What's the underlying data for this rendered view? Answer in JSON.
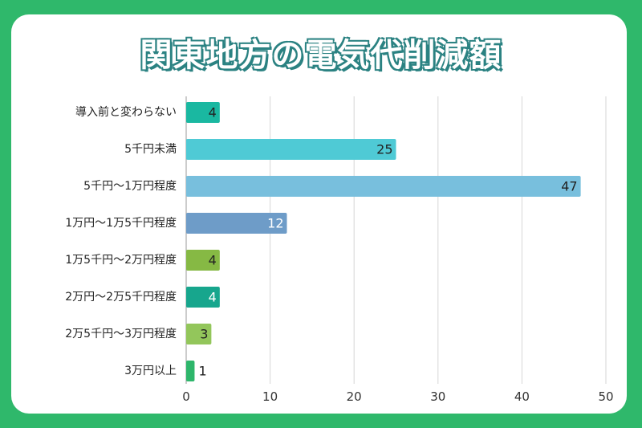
{
  "title": "関東地方の電気代削減額",
  "chart_data": {
    "type": "bar",
    "orientation": "horizontal",
    "title": "関東地方の電気代削減額",
    "categories": [
      "導入前と変わらない",
      "5千円未満",
      "5千円〜1万円程度",
      "1万円〜1万5千円程度",
      "1万5千円〜2万円程度",
      "2万円〜2万5千円程度",
      "2万5千円〜3万円程度",
      "3万円以上"
    ],
    "values": [
      4,
      25,
      47,
      12,
      4,
      4,
      3,
      1
    ],
    "colors": [
      "#1ab8a1",
      "#4fcad5",
      "#78bfdd",
      "#6e9cc8",
      "#86b944",
      "#17a68d",
      "#93c65b",
      "#2eb66b"
    ],
    "label_colors": [
      "#222",
      "#222",
      "#222",
      "#fff",
      "#222",
      "#fff",
      "#222",
      "#222"
    ],
    "xlim": [
      0,
      50
    ],
    "xticks": [
      "0",
      "10",
      "20",
      "30",
      "40",
      "50"
    ],
    "grid": true,
    "xlabel": "",
    "ylabel": ""
  }
}
